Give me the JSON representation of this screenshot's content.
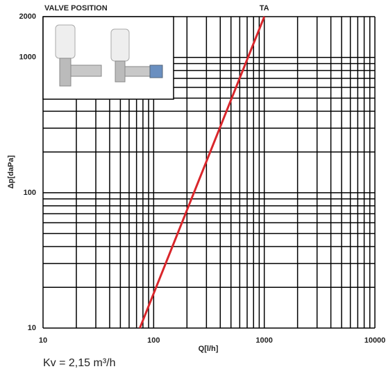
{
  "chart_data": {
    "type": "line",
    "annotation": "VALVE POSITION",
    "xlabel": "Q[l/h]",
    "ylabel": "Δp[daPa]",
    "footnote": "Kv = 2,15 m³/h",
    "xscale": "log",
    "yscale": "log",
    "xlim": [
      10,
      10000
    ],
    "ylim": [
      10,
      2000
    ],
    "xticks": [
      10,
      100,
      1000,
      10000
    ],
    "yticks": [
      10,
      100,
      1000,
      2000
    ],
    "xgrid": [
      10,
      20,
      30,
      40,
      50,
      60,
      70,
      80,
      90,
      100,
      200,
      300,
      400,
      500,
      600,
      700,
      800,
      900,
      1000,
      2000,
      3000,
      4000,
      5000,
      6000,
      7000,
      8000,
      9000,
      10000
    ],
    "ygrid": [
      10,
      20,
      30,
      40,
      50,
      60,
      70,
      80,
      90,
      100,
      200,
      300,
      400,
      500,
      600,
      700,
      800,
      900,
      1000,
      2000
    ],
    "grid": true,
    "grid_color": "#000000",
    "series": [
      {
        "name": "TA",
        "color": "#d9262b",
        "x": [
          75,
          1000
        ],
        "values": [
          10,
          2000
        ]
      }
    ]
  }
}
